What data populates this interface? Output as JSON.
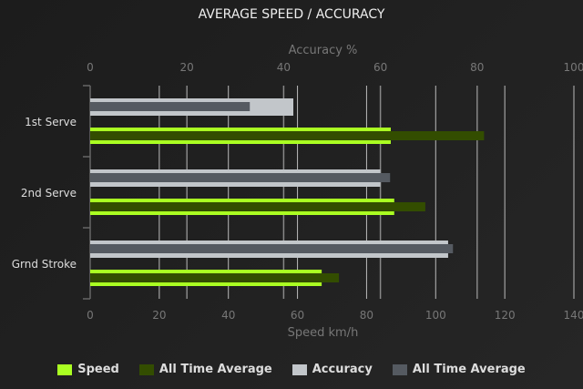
{
  "chart_data": {
    "type": "bar",
    "orientation": "horizontal",
    "title": "AVERAGE SPEED / ACCURACY",
    "categories": [
      "1st Serve",
      "2nd Serve",
      "Grnd Stroke"
    ],
    "x_top": {
      "label": "Accuracy %",
      "range": [
        0,
        100
      ],
      "ticks": [
        0,
        20,
        40,
        60,
        80,
        100
      ]
    },
    "x_bottom": {
      "label": "Speed km/h",
      "range": [
        0,
        140
      ],
      "ticks": [
        0,
        20,
        40,
        60,
        80,
        100,
        120,
        140
      ]
    },
    "series": [
      {
        "name": "Speed",
        "axis": "bottom",
        "color": "#aaff22",
        "values": [
          87,
          88,
          67
        ]
      },
      {
        "name": "All Time Average",
        "axis": "bottom",
        "color": "#334d00",
        "values": [
          114,
          97,
          72
        ]
      },
      {
        "name": "Accuracy",
        "axis": "top",
        "color": "#c2c6ca",
        "values": [
          42,
          60,
          74
        ]
      },
      {
        "name": "All Time Average",
        "axis": "top",
        "color": "#555a61",
        "values": [
          33,
          62,
          75
        ]
      }
    ],
    "grid": true,
    "legend": "bottom"
  }
}
